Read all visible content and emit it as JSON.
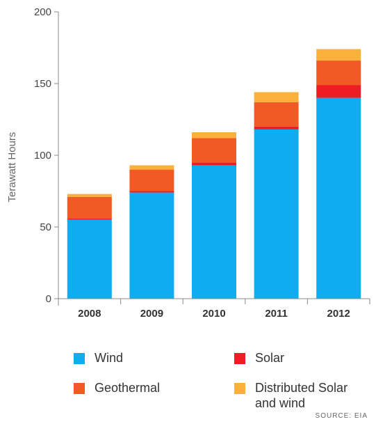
{
  "chart_data": {
    "type": "bar",
    "stacked": true,
    "categories": [
      "2008",
      "2009",
      "2010",
      "2011",
      "2012"
    ],
    "series": [
      {
        "name": "Wind",
        "color": "#0FADEF",
        "values": [
          55,
          74,
          93,
          118,
          140
        ]
      },
      {
        "name": "Solar",
        "color": "#EE1C25",
        "values": [
          1,
          1,
          2,
          2,
          9
        ]
      },
      {
        "name": "Geothermal",
        "color": "#F15A24",
        "values": [
          15,
          15,
          17,
          17,
          17
        ]
      },
      {
        "name": "Distributed Solar and wind",
        "color": "#FBB03B",
        "values": [
          2,
          3,
          4,
          7,
          8
        ]
      }
    ],
    "ylabel": "Terawatt Hours",
    "ylim": [
      0,
      200
    ],
    "yticks": [
      0,
      50,
      100,
      150,
      200
    ],
    "grid": false,
    "legend_position": "bottom"
  },
  "legend": [
    {
      "label": "Wind",
      "color": "#0FADEF"
    },
    {
      "label": "Solar",
      "color": "#EE1C25"
    },
    {
      "label": "Geothermal",
      "color": "#F15A24"
    },
    {
      "label": "Distributed Solar\nand wind",
      "color": "#FBB03B"
    }
  ],
  "source": "SOURCE: EIA"
}
